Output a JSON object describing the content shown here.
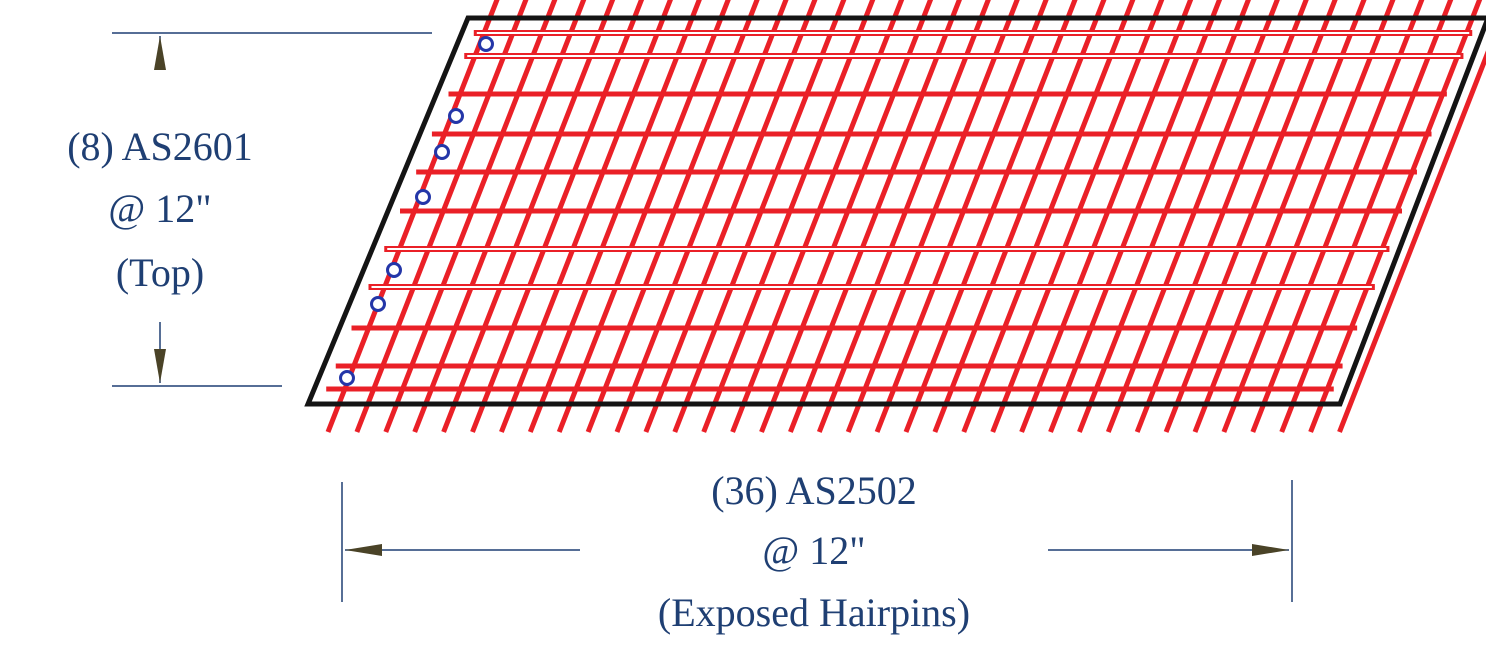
{
  "labels": {
    "top": {
      "line1": "(8) AS2601",
      "line2": "@ 12\"",
      "line3": "(Top)"
    },
    "bottom": {
      "line1": "(36) AS2502",
      "line2": "@ 12\"",
      "line3": "(Exposed Hairpins)"
    }
  },
  "colors": {
    "rebar": "#ea2027",
    "slab_outline": "#141414",
    "dimension": "#1f3f73",
    "bar_section_marker": "#2436a8"
  }
}
